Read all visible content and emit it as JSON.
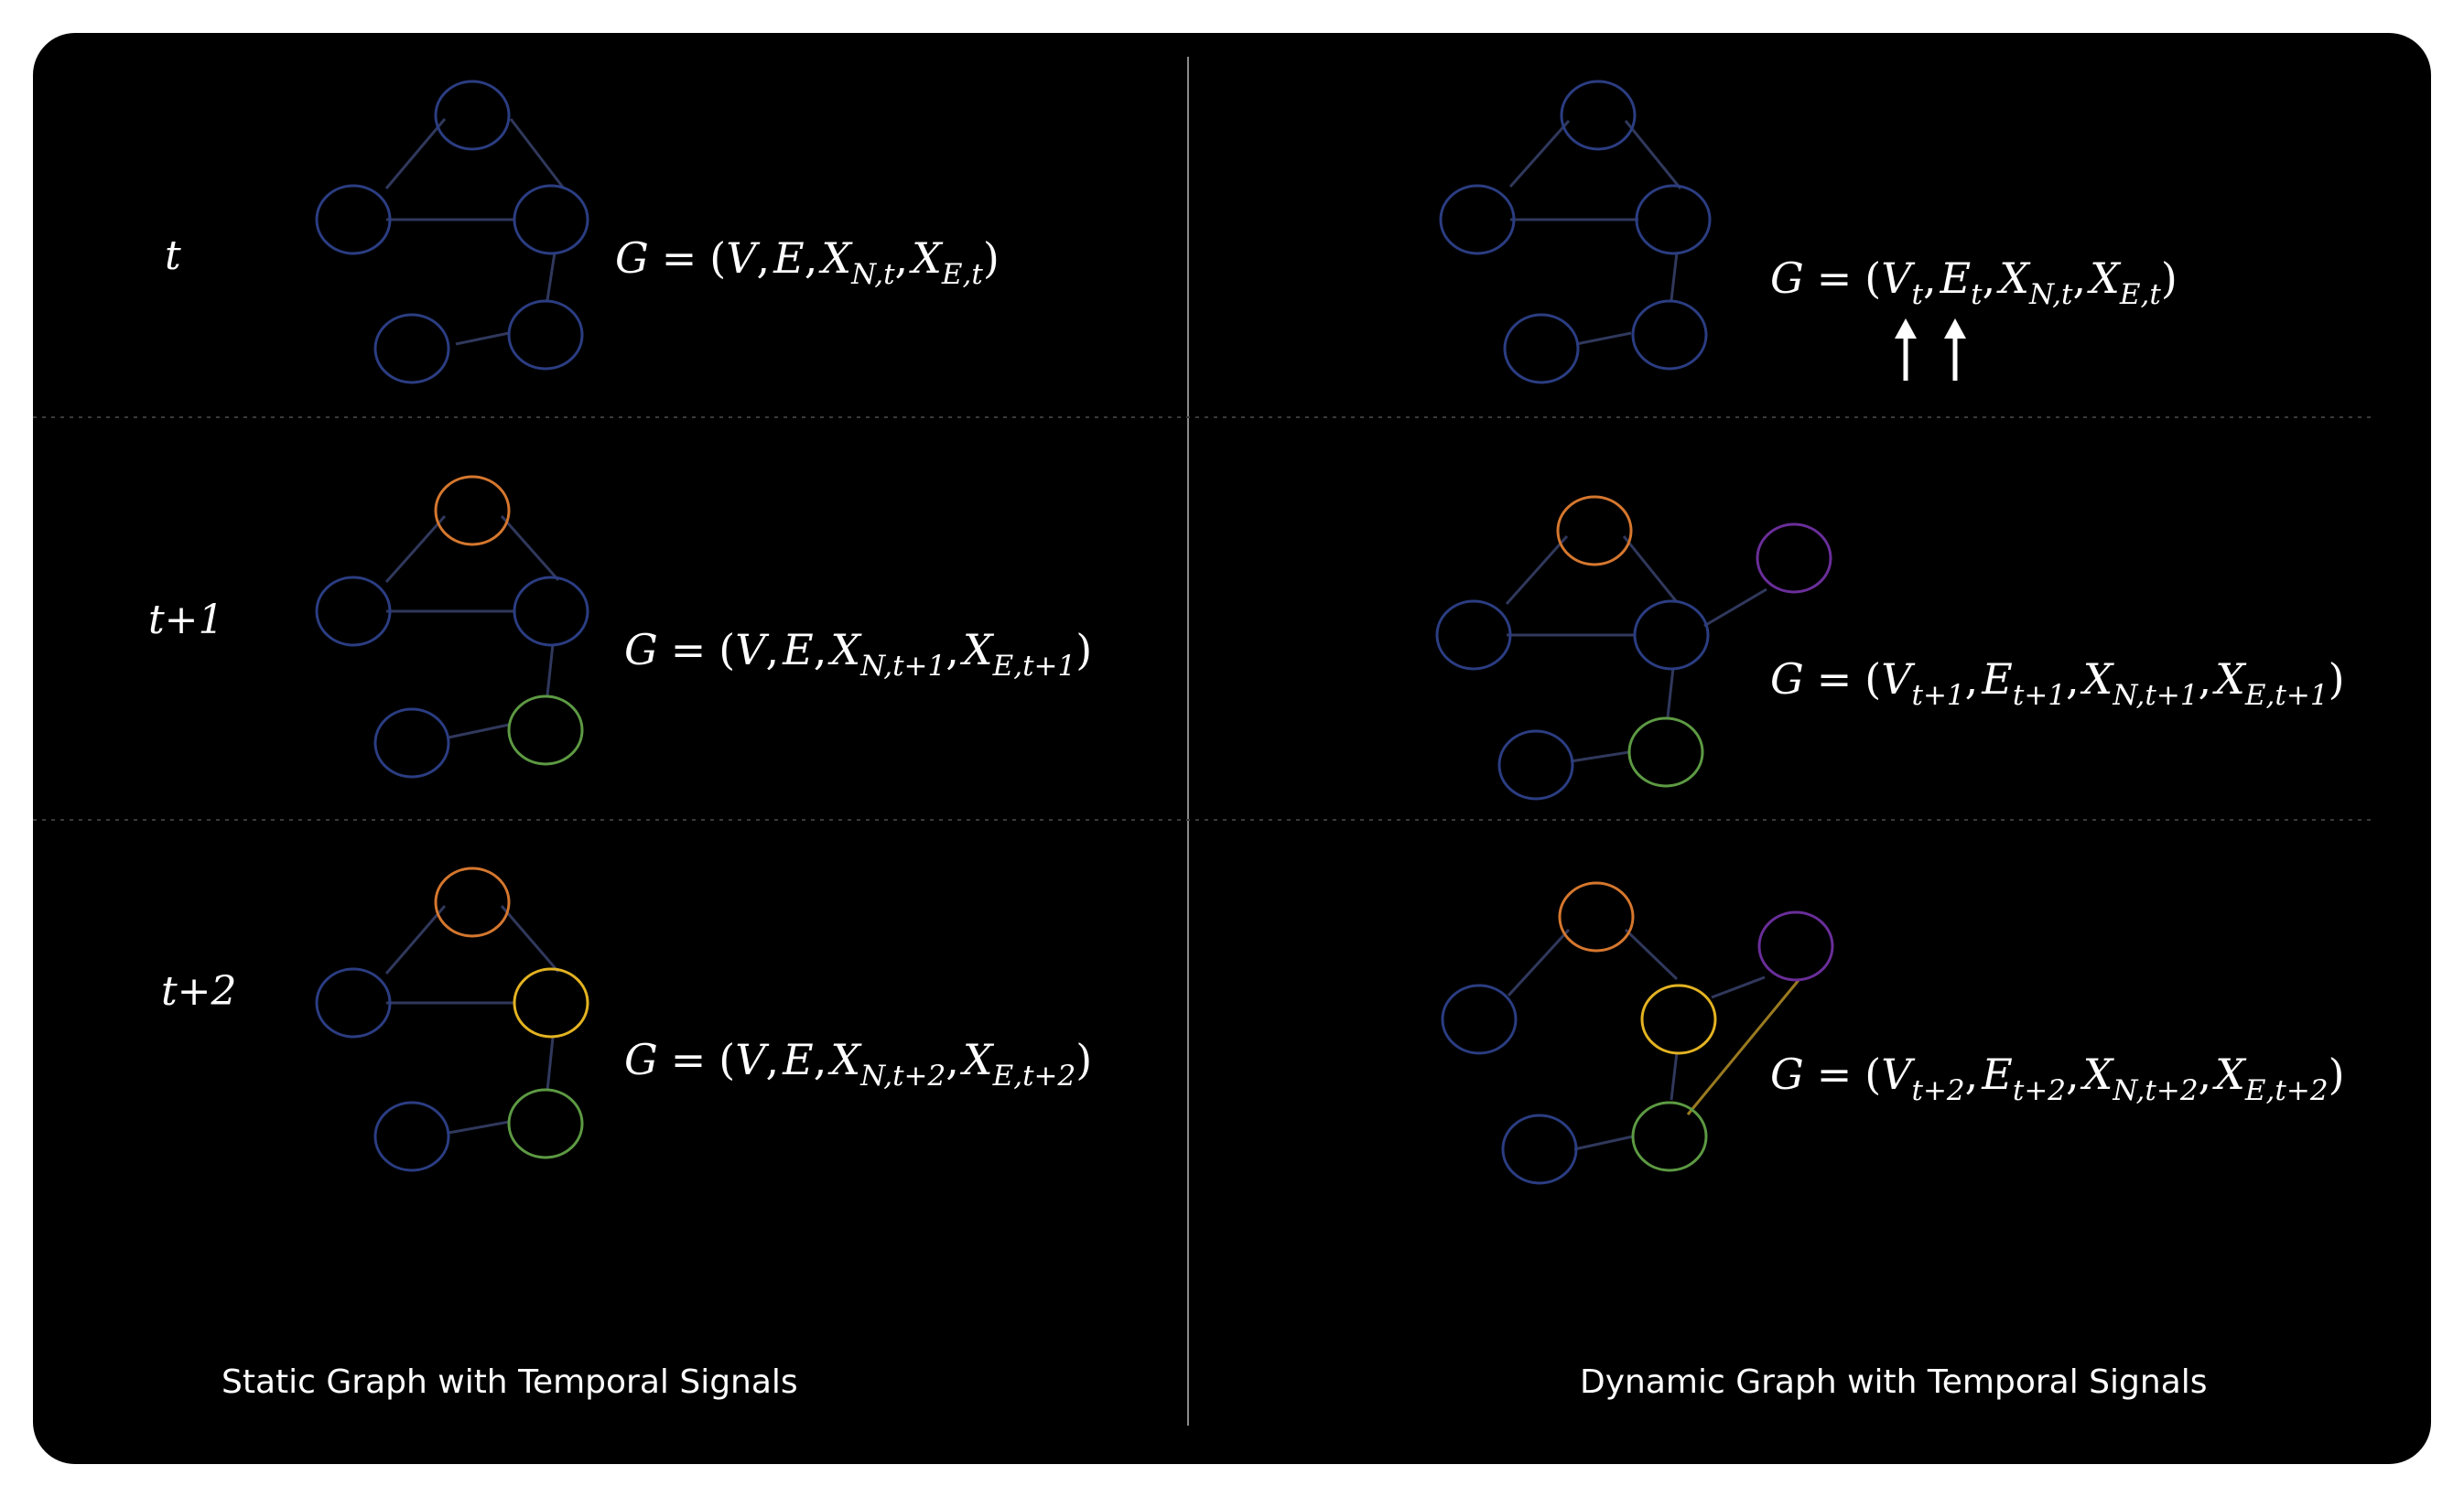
{
  "colors": {
    "background": "#000000",
    "frame": "#ffffff",
    "node_blue": "#2b3d82",
    "node_orange": "#d5772e",
    "node_green": "#5d9a43",
    "node_yellow": "#e3b321",
    "node_purple": "#6a2e9a",
    "edge": "#30385c",
    "edge_yellow": "#9a7a20",
    "divider": "#8a8a8a",
    "separator": "#3a3a3a",
    "text": "#ffffff"
  },
  "time_labels": {
    "t0": "t",
    "t1": "t+1",
    "t2": "t+2"
  },
  "static": {
    "caption": "Static Graph with Temporal Signals",
    "eq_t0": {
      "lhs": "G",
      "equals": "=",
      "open": "(",
      "close": ")",
      "sep": ",",
      "v": "V",
      "e": "E",
      "x": "X",
      "sub_xn": "N,t",
      "sub_xe": "E,t"
    },
    "eq_t1": {
      "lhs": "G",
      "equals": "=",
      "open": "(",
      "close": ")",
      "sep": ",",
      "v": "V",
      "e": "E",
      "x": "X",
      "sub_xn": "N,t+1",
      "sub_xe": "E,t+1"
    },
    "eq_t2": {
      "lhs": "G",
      "equals": "=",
      "open": "(",
      "close": ")",
      "sep": ",",
      "v": "V",
      "e": "E",
      "x": "X",
      "sub_xn": "N,t+2",
      "sub_xe": "E,t+2"
    }
  },
  "dynamic": {
    "caption": "Dynamic Graph with Temporal Signals",
    "eq_t0": {
      "lhs": "G",
      "equals": "=",
      "open": "(",
      "close": ")",
      "sep": ",",
      "v": "V",
      "e": "E",
      "x": "X",
      "sub_v": "t",
      "sub_e": "t",
      "sub_xn": "N,t",
      "sub_xe": "E,t"
    },
    "eq_t1": {
      "lhs": "G",
      "equals": "=",
      "open": "(",
      "close": ")",
      "sep": ",",
      "v": "V",
      "e": "E",
      "x": "X",
      "sub_v": "t+1",
      "sub_e": "t+1",
      "sub_xn": "N,t+1",
      "sub_xe": "E,t+1"
    },
    "eq_t2": {
      "lhs": "G",
      "equals": "=",
      "open": "(",
      "close": ")",
      "sep": ",",
      "v": "V",
      "e": "E",
      "x": "X",
      "sub_v": "t+2",
      "sub_e": "t+2",
      "sub_xn": "N,t+2",
      "sub_xe": "E,t+2"
    }
  }
}
